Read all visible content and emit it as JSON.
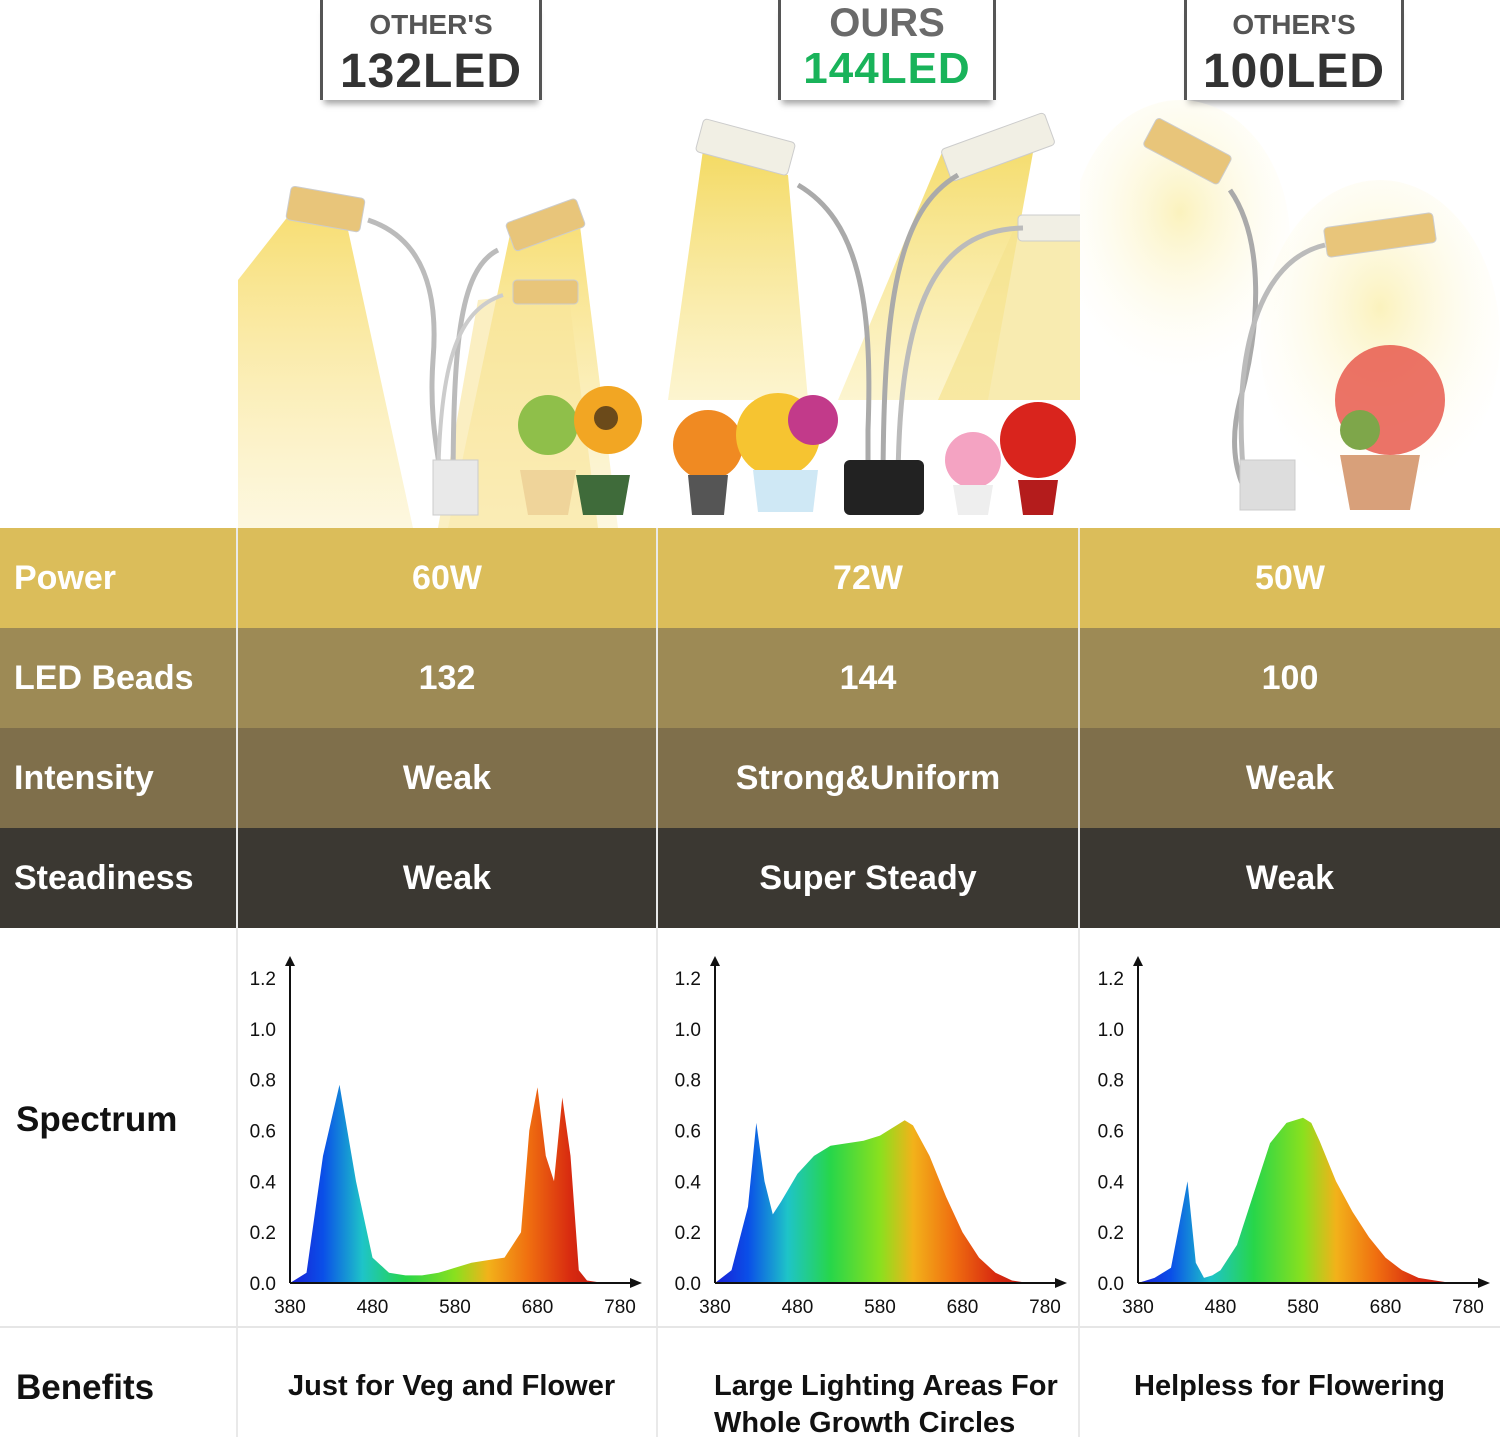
{
  "columns": [
    {
      "badge_top": "OTHER'S",
      "badge_main": "132LED",
      "power": "60W",
      "led_beads": "132",
      "intensity": "Weak",
      "steadiness": "Weak",
      "benefit": "Just for Veg and Flower"
    },
    {
      "badge_top": "OURS",
      "badge_main": "144LED",
      "power": "72W",
      "led_beads": "144",
      "intensity": "Strong&Uniform",
      "steadiness": "Super Steady",
      "benefit": "Large Lighting Areas For Whole Growth Circles"
    },
    {
      "badge_top": "OTHER'S",
      "badge_main": "100LED",
      "power": "50W",
      "led_beads": "100",
      "intensity": "Weak",
      "steadiness": "Weak",
      "benefit": "Helpless for Flowering"
    }
  ],
  "row_labels": {
    "power": "Power",
    "led_beads": "LED Beads",
    "intensity": "Intensity",
    "steadiness": "Steadiness",
    "spectrum": "Spectrum",
    "benefits": "Benefits"
  },
  "colors": {
    "power_row": "#dbbd5a",
    "beads_row": "#9d8a55",
    "intensity_row": "#7f6f4b",
    "steadiness_row": "#3b3832",
    "ours_badge": "#19b35a"
  },
  "chart_data": [
    {
      "type": "area",
      "x": [
        380,
        400,
        420,
        440,
        460,
        480,
        500,
        520,
        540,
        560,
        580,
        600,
        620,
        640,
        660,
        670,
        680,
        690,
        700,
        710,
        720,
        730,
        740,
        760,
        780
      ],
      "values": [
        0.0,
        0.04,
        0.5,
        0.78,
        0.4,
        0.1,
        0.04,
        0.03,
        0.03,
        0.04,
        0.06,
        0.08,
        0.09,
        0.1,
        0.2,
        0.6,
        0.77,
        0.5,
        0.4,
        0.73,
        0.5,
        0.05,
        0.01,
        0.0,
        0.0
      ],
      "x_ticks": [
        "380",
        "480",
        "580",
        "680",
        "780"
      ],
      "y_ticks": [
        "0.0",
        "0.2",
        "0.4",
        "0.6",
        "0.8",
        "1.0",
        "1.2"
      ],
      "xlim": [
        380,
        780
      ],
      "ylim": [
        0,
        1.2
      ]
    },
    {
      "type": "area",
      "x": [
        380,
        400,
        420,
        430,
        440,
        450,
        460,
        480,
        500,
        520,
        540,
        560,
        580,
        600,
        610,
        620,
        640,
        660,
        680,
        700,
        720,
        740,
        760,
        780
      ],
      "values": [
        0.0,
        0.05,
        0.3,
        0.63,
        0.4,
        0.27,
        0.32,
        0.43,
        0.5,
        0.54,
        0.55,
        0.56,
        0.58,
        0.62,
        0.64,
        0.62,
        0.5,
        0.34,
        0.2,
        0.1,
        0.04,
        0.01,
        0.0,
        0.0
      ],
      "x_ticks": [
        "380",
        "480",
        "580",
        "680",
        "780"
      ],
      "y_ticks": [
        "0.0",
        "0.2",
        "0.4",
        "0.6",
        "0.8",
        "1.0",
        "1.2"
      ],
      "xlim": [
        380,
        780
      ],
      "ylim": [
        0,
        1.2
      ]
    },
    {
      "type": "area",
      "x": [
        380,
        400,
        420,
        440,
        450,
        460,
        470,
        480,
        500,
        520,
        540,
        560,
        580,
        590,
        600,
        620,
        640,
        660,
        680,
        700,
        720,
        740,
        760,
        780
      ],
      "values": [
        0.0,
        0.02,
        0.06,
        0.4,
        0.08,
        0.02,
        0.03,
        0.05,
        0.15,
        0.35,
        0.55,
        0.63,
        0.65,
        0.63,
        0.56,
        0.4,
        0.28,
        0.18,
        0.1,
        0.05,
        0.02,
        0.01,
        0.0,
        0.0
      ],
      "x_ticks": [
        "380",
        "480",
        "580",
        "680",
        "780"
      ],
      "y_ticks": [
        "0.0",
        "0.2",
        "0.4",
        "0.6",
        "0.8",
        "1.0",
        "1.2"
      ],
      "xlim": [
        380,
        780
      ],
      "ylim": [
        0,
        1.2
      ]
    }
  ]
}
